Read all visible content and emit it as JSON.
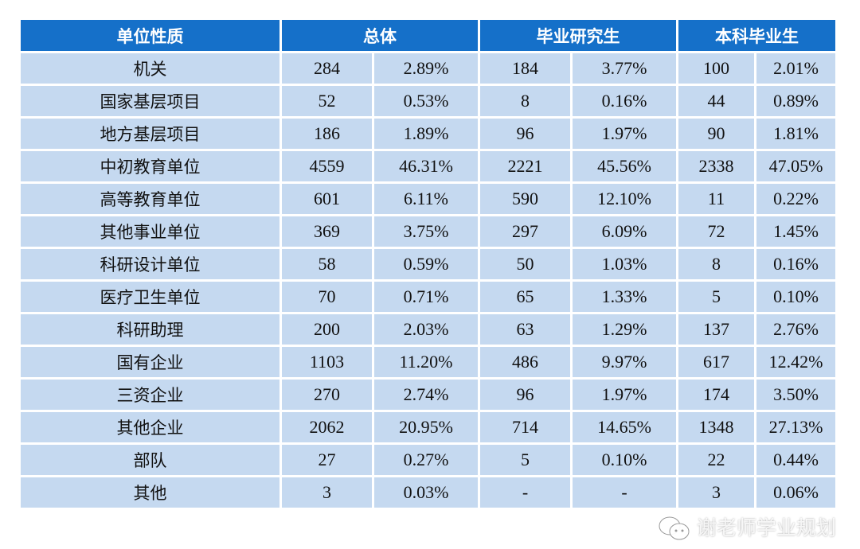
{
  "headers": [
    "单位性质",
    "总体",
    "毕业研究生",
    "本科毕业生"
  ],
  "rows": [
    [
      "机关",
      "284",
      "2.89%",
      "184",
      "3.77%",
      "100",
      "2.01%"
    ],
    [
      "国家基层项目",
      "52",
      "0.53%",
      "8",
      "0.16%",
      "44",
      "0.89%"
    ],
    [
      "地方基层项目",
      "186",
      "1.89%",
      "96",
      "1.97%",
      "90",
      "1.81%"
    ],
    [
      "中初教育单位",
      "4559",
      "46.31%",
      "2221",
      "45.56%",
      "2338",
      "47.05%"
    ],
    [
      "高等教育单位",
      "601",
      "6.11%",
      "590",
      "12.10%",
      "11",
      "0.22%"
    ],
    [
      "其他事业单位",
      "369",
      "3.75%",
      "297",
      "6.09%",
      "72",
      "1.45%"
    ],
    [
      "科研设计单位",
      "58",
      "0.59%",
      "50",
      "1.03%",
      "8",
      "0.16%"
    ],
    [
      "医疗卫生单位",
      "70",
      "0.71%",
      "65",
      "1.33%",
      "5",
      "0.10%"
    ],
    [
      "科研助理",
      "200",
      "2.03%",
      "63",
      "1.29%",
      "137",
      "2.76%"
    ],
    [
      "国有企业",
      "1103",
      "11.20%",
      "486",
      "9.97%",
      "617",
      "12.42%"
    ],
    [
      "三资企业",
      "270",
      "2.74%",
      "96",
      "1.97%",
      "174",
      "3.50%"
    ],
    [
      "其他企业",
      "2062",
      "20.95%",
      "714",
      "14.65%",
      "1348",
      "27.13%"
    ],
    [
      "部队",
      "27",
      "0.27%",
      "5",
      "0.10%",
      "22",
      "0.44%"
    ],
    [
      "其他",
      "3",
      "0.03%",
      "-",
      "-",
      "3",
      "0.06%"
    ]
  ],
  "watermark": "谢老师学业规划"
}
